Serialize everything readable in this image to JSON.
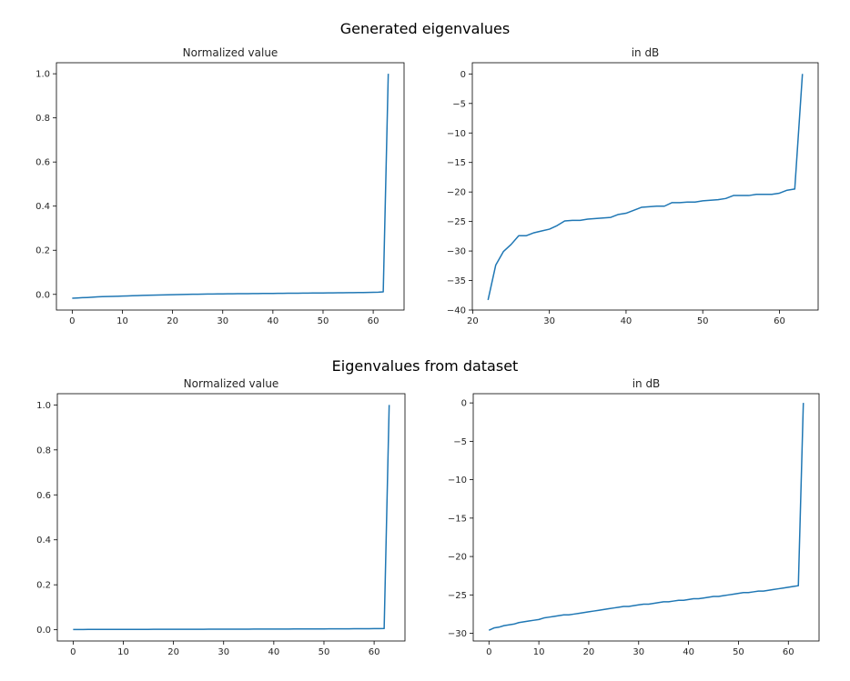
{
  "figure": {
    "suptitles": [
      "Generated eigenvalues",
      "Eigenvalues from dataset"
    ]
  },
  "style": {
    "line_color": "#1f77b4",
    "axis_color": "#000000"
  },
  "chart_data": [
    {
      "type": "line",
      "title": "Normalized value",
      "xlim": [
        -3.15,
        66.15
      ],
      "ylim": [
        -0.071,
        1.05
      ],
      "xticks": [
        0,
        10,
        20,
        30,
        40,
        50,
        60
      ],
      "yticks": [
        0.0,
        0.2,
        0.4,
        0.6,
        0.8,
        1.0
      ],
      "ytick_labels": [
        "0.0",
        "0.2",
        "0.4",
        "0.6",
        "0.8",
        "1.0"
      ],
      "x": [
        0,
        1,
        2,
        3,
        4,
        5,
        6,
        7,
        8,
        9,
        10,
        11,
        12,
        13,
        14,
        15,
        16,
        17,
        18,
        19,
        20,
        21,
        22,
        23,
        24,
        25,
        26,
        27,
        28,
        29,
        30,
        31,
        32,
        33,
        34,
        35,
        36,
        37,
        38,
        39,
        40,
        41,
        42,
        43,
        44,
        45,
        46,
        47,
        48,
        49,
        50,
        51,
        52,
        53,
        54,
        55,
        56,
        57,
        58,
        59,
        60,
        61,
        62,
        63
      ],
      "y": [
        -0.0172,
        -0.0162,
        -0.015,
        -0.0142,
        -0.013,
        -0.0115,
        -0.0103,
        -0.0095,
        -0.009,
        -0.0085,
        -0.0078,
        -0.007,
        -0.0062,
        -0.0055,
        -0.0047,
        -0.004,
        -0.0033,
        -0.0028,
        -0.0023,
        -0.0018,
        -0.0013,
        -0.0008,
        -0.0004,
        0.0,
        0.0004,
        0.0008,
        0.0011,
        0.0014,
        0.0017,
        0.002,
        0.0023,
        0.0025,
        0.0028,
        0.003,
        0.0032,
        0.0034,
        0.0036,
        0.0038,
        0.004,
        0.0042,
        0.0044,
        0.0047,
        0.0049,
        0.0051,
        0.0053,
        0.0055,
        0.0057,
        0.0059,
        0.0061,
        0.0063,
        0.0065,
        0.0067,
        0.0069,
        0.0071,
        0.0074,
        0.0076,
        0.0078,
        0.0081,
        0.0084,
        0.0088,
        0.0092,
        0.01,
        0.0115,
        1.0
      ]
    },
    {
      "type": "line",
      "title": "in dB",
      "xlim": [
        19.95,
        65.05
      ],
      "ylim": [
        -40.0,
        1.9
      ],
      "xticks": [
        20,
        30,
        40,
        50,
        60
      ],
      "yticks": [
        -40,
        -35,
        -30,
        -25,
        -20,
        -15,
        -10,
        -5,
        0
      ],
      "ytick_labels": [
        "−40",
        "−35",
        "−30",
        "−25",
        "−20",
        "−15",
        "−10",
        "−5",
        "0"
      ],
      "x": [
        22,
        23,
        24,
        25,
        26,
        27,
        28,
        29,
        30,
        31,
        32,
        33,
        34,
        35,
        36,
        37,
        38,
        39,
        40,
        41,
        42,
        43,
        44,
        45,
        46,
        47,
        48,
        49,
        50,
        51,
        52,
        53,
        54,
        55,
        56,
        57,
        58,
        59,
        60,
        61,
        62,
        63
      ],
      "y": [
        -38.3,
        -32.4,
        -30.1,
        -28.9,
        -27.4,
        -27.4,
        -26.9,
        -26.6,
        -26.3,
        -25.7,
        -24.9,
        -24.8,
        -24.8,
        -24.6,
        -24.5,
        -24.4,
        -24.3,
        -23.8,
        -23.6,
        -23.1,
        -22.6,
        -22.5,
        -22.4,
        -22.4,
        -21.8,
        -21.8,
        -21.7,
        -21.7,
        -21.5,
        -21.4,
        -21.3,
        -21.1,
        -20.6,
        -20.6,
        -20.6,
        -20.4,
        -20.4,
        -20.4,
        -20.2,
        -19.7,
        -19.5,
        0.0
      ]
    },
    {
      "type": "line",
      "title": "Normalized value",
      "xlim": [
        -3.15,
        66.15
      ],
      "ylim": [
        -0.05,
        1.05
      ],
      "xticks": [
        0,
        10,
        20,
        30,
        40,
        50,
        60
      ],
      "yticks": [
        0.0,
        0.2,
        0.4,
        0.6,
        0.8,
        1.0
      ],
      "ytick_labels": [
        "0.0",
        "0.2",
        "0.4",
        "0.6",
        "0.8",
        "1.0"
      ],
      "x": [
        0,
        1,
        2,
        3,
        4,
        5,
        6,
        7,
        8,
        9,
        10,
        11,
        12,
        13,
        14,
        15,
        16,
        17,
        18,
        19,
        20,
        21,
        22,
        23,
        24,
        25,
        26,
        27,
        28,
        29,
        30,
        31,
        32,
        33,
        34,
        35,
        36,
        37,
        38,
        39,
        40,
        41,
        42,
        43,
        44,
        45,
        46,
        47,
        48,
        49,
        50,
        51,
        52,
        53,
        54,
        55,
        56,
        57,
        58,
        59,
        60,
        61,
        62,
        63
      ],
      "y": [
        0.0011,
        0.0012,
        0.0012,
        0.0013,
        0.0013,
        0.0014,
        0.0014,
        0.0015,
        0.0015,
        0.0016,
        0.0016,
        0.0017,
        0.0017,
        0.0018,
        0.0018,
        0.0018,
        0.0019,
        0.0019,
        0.0019,
        0.002,
        0.002,
        0.0021,
        0.0021,
        0.0022,
        0.0022,
        0.0023,
        0.0023,
        0.0024,
        0.0024,
        0.0025,
        0.0025,
        0.0026,
        0.0026,
        0.0027,
        0.0027,
        0.0028,
        0.0029,
        0.0029,
        0.003,
        0.003,
        0.0031,
        0.0032,
        0.0032,
        0.0033,
        0.0034,
        0.0034,
        0.0035,
        0.0036,
        0.0037,
        0.0037,
        0.0038,
        0.0039,
        0.004,
        0.0041,
        0.0042,
        0.0043,
        0.0044,
        0.0045,
        0.0047,
        0.0048,
        0.005,
        0.0052,
        0.0054,
        1.0
      ]
    },
    {
      "type": "line",
      "title": "in dB",
      "xlim": [
        -3.15,
        66.15
      ],
      "ylim": [
        -31.0,
        1.2
      ],
      "xticks": [
        0,
        10,
        20,
        30,
        40,
        50,
        60
      ],
      "yticks": [
        -30,
        -25,
        -20,
        -15,
        -10,
        -5,
        0
      ],
      "ytick_labels": [
        "−30",
        "−25",
        "−20",
        "−15",
        "−10",
        "−5",
        "0"
      ],
      "x": [
        0,
        1,
        2,
        3,
        4,
        5,
        6,
        7,
        8,
        9,
        10,
        11,
        12,
        13,
        14,
        15,
        16,
        17,
        18,
        19,
        20,
        21,
        22,
        23,
        24,
        25,
        26,
        27,
        28,
        29,
        30,
        31,
        32,
        33,
        34,
        35,
        36,
        37,
        38,
        39,
        40,
        41,
        42,
        43,
        44,
        45,
        46,
        47,
        48,
        49,
        50,
        51,
        52,
        53,
        54,
        55,
        56,
        57,
        58,
        59,
        60,
        61,
        62,
        63
      ],
      "y": [
        -29.6,
        -29.3,
        -29.2,
        -29.0,
        -28.9,
        -28.8,
        -28.6,
        -28.5,
        -28.4,
        -28.3,
        -28.2,
        -28.0,
        -27.9,
        -27.8,
        -27.7,
        -27.6,
        -27.6,
        -27.5,
        -27.4,
        -27.3,
        -27.2,
        -27.1,
        -27.0,
        -26.9,
        -26.8,
        -26.7,
        -26.6,
        -26.5,
        -26.5,
        -26.4,
        -26.3,
        -26.2,
        -26.2,
        -26.1,
        -26.0,
        -25.9,
        -25.9,
        -25.8,
        -25.7,
        -25.7,
        -25.6,
        -25.5,
        -25.5,
        -25.4,
        -25.3,
        -25.2,
        -25.2,
        -25.1,
        -25.0,
        -24.9,
        -24.8,
        -24.7,
        -24.7,
        -24.6,
        -24.5,
        -24.5,
        -24.4,
        -24.3,
        -24.2,
        -24.1,
        -24.0,
        -23.9,
        -23.8,
        0.0
      ]
    }
  ]
}
